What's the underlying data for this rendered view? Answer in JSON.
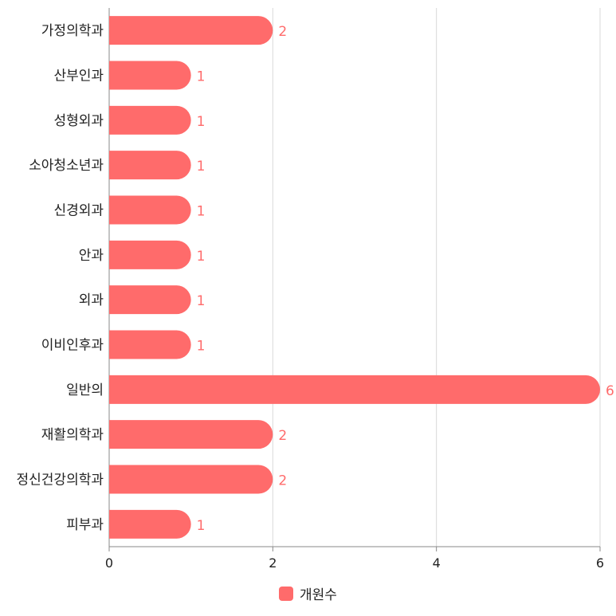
{
  "chart_data": {
    "type": "bar",
    "orientation": "horizontal",
    "categories": [
      "가정의학과",
      "산부인과",
      "성형외과",
      "소아청소년과",
      "신경외과",
      "안과",
      "외과",
      "이비인후과",
      "일반의",
      "재활의학과",
      "정신건강의학과",
      "피부과"
    ],
    "series": [
      {
        "name": "개원수",
        "values": [
          2,
          1,
          1,
          1,
          1,
          1,
          1,
          1,
          6,
          2,
          2,
          1
        ]
      }
    ],
    "xlim": [
      0,
      6
    ],
    "x_ticks": [
      "0",
      "2",
      "4",
      "6"
    ],
    "grid": true,
    "legend_position": "bottom"
  },
  "colors": {
    "bar": "#ff6b6b",
    "grid": "#d9d9d9",
    "axis": "#888888"
  }
}
